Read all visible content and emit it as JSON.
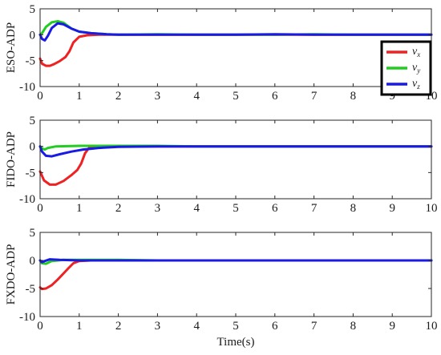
{
  "chart_data": [
    {
      "type": "line",
      "ylabel": "ESO-ADP",
      "xlabel": "",
      "xlim": [
        0,
        10
      ],
      "ylim": [
        -10,
        5
      ],
      "xticks": [
        "0",
        "1",
        "2",
        "3",
        "4",
        "5",
        "6",
        "7",
        "8",
        "9",
        "10"
      ],
      "yticks": [
        "5",
        "0",
        "-5",
        "-10"
      ],
      "grid": false,
      "legend": {
        "placement": "right",
        "entries": [
          {
            "base": "v",
            "sub": "x"
          },
          {
            "base": "v",
            "sub": "y"
          },
          {
            "base": "v",
            "sub": "z"
          }
        ]
      },
      "series": [
        {
          "color": "#ee2222",
          "points": [
            [
              0,
              -4.6
            ],
            [
              0.05,
              -5.6
            ],
            [
              0.15,
              -6.0
            ],
            [
              0.25,
              -6.0
            ],
            [
              0.35,
              -5.7
            ],
            [
              0.5,
              -5.1
            ],
            [
              0.65,
              -4.3
            ],
            [
              0.75,
              -3.2
            ],
            [
              0.85,
              -1.5
            ],
            [
              1.0,
              -0.4
            ],
            [
              1.2,
              -0.1
            ],
            [
              1.5,
              0.0
            ],
            [
              2,
              0.0
            ],
            [
              3,
              0.0
            ],
            [
              4,
              0.0
            ],
            [
              5,
              0.0
            ],
            [
              6,
              0.0
            ],
            [
              7,
              0.0
            ],
            [
              8,
              0.0
            ],
            [
              9,
              0.0
            ],
            [
              10,
              0.0
            ]
          ]
        },
        {
          "color": "#22cc22",
          "points": [
            [
              0,
              0.0
            ],
            [
              0.05,
              0.3
            ],
            [
              0.15,
              1.5
            ],
            [
              0.3,
              2.4
            ],
            [
              0.45,
              2.6
            ],
            [
              0.6,
              2.3
            ],
            [
              0.8,
              1.2
            ],
            [
              1.0,
              0.6
            ],
            [
              1.3,
              0.3
            ],
            [
              1.7,
              0.1
            ],
            [
              2,
              0.0
            ],
            [
              3,
              0.1
            ],
            [
              4,
              0.0
            ],
            [
              5,
              0.0
            ],
            [
              6,
              0.0
            ],
            [
              7,
              0.1
            ],
            [
              8,
              0.0
            ],
            [
              9,
              0.0
            ],
            [
              10,
              0.0
            ]
          ]
        },
        {
          "color": "#1a1ae6",
          "points": [
            [
              0,
              0.0
            ],
            [
              0.05,
              -0.8
            ],
            [
              0.12,
              -1.1
            ],
            [
              0.2,
              -0.2
            ],
            [
              0.3,
              1.3
            ],
            [
              0.45,
              2.2
            ],
            [
              0.6,
              2.0
            ],
            [
              0.8,
              1.2
            ],
            [
              1.0,
              0.6
            ],
            [
              1.3,
              0.3
            ],
            [
              1.7,
              0.1
            ],
            [
              2,
              0.0
            ],
            [
              3,
              0.0
            ],
            [
              4,
              0.0
            ],
            [
              5,
              0.0
            ],
            [
              6,
              0.1
            ],
            [
              7,
              0.0
            ],
            [
              8,
              0.0
            ],
            [
              9,
              0.0
            ],
            [
              10,
              0.0
            ]
          ]
        }
      ]
    },
    {
      "type": "line",
      "ylabel": "FIDO-ADP",
      "xlabel": "",
      "xlim": [
        0,
        10
      ],
      "ylim": [
        -10,
        5
      ],
      "xticks": [
        "0",
        "1",
        "2",
        "3",
        "4",
        "5",
        "6",
        "7",
        "8",
        "9",
        "10"
      ],
      "yticks": [
        "5",
        "0",
        "-5",
        "-10"
      ],
      "grid": false,
      "series": [
        {
          "color": "#ee2222",
          "points": [
            [
              0,
              -4.8
            ],
            [
              0.1,
              -6.5
            ],
            [
              0.25,
              -7.3
            ],
            [
              0.4,
              -7.3
            ],
            [
              0.6,
              -6.6
            ],
            [
              0.8,
              -5.5
            ],
            [
              0.95,
              -4.5
            ],
            [
              1.05,
              -3.3
            ],
            [
              1.15,
              -1.3
            ],
            [
              1.25,
              -0.3
            ],
            [
              1.4,
              0.0
            ],
            [
              2,
              0.0
            ],
            [
              3,
              0.0
            ],
            [
              4,
              0.0
            ],
            [
              5,
              0.0
            ],
            [
              6,
              0.0
            ],
            [
              7,
              0.0
            ],
            [
              8,
              0.0
            ],
            [
              9,
              0.0
            ],
            [
              10,
              0.0
            ]
          ]
        },
        {
          "color": "#22cc22",
          "points": [
            [
              0,
              0.0
            ],
            [
              0.05,
              -0.4
            ],
            [
              0.12,
              -0.6
            ],
            [
              0.2,
              -0.3
            ],
            [
              0.4,
              0.0
            ],
            [
              1.0,
              0.1
            ],
            [
              2,
              0.1
            ],
            [
              3,
              0.1
            ],
            [
              4,
              0.0
            ],
            [
              5,
              0.0
            ],
            [
              6,
              0.0
            ],
            [
              7,
              0.0
            ],
            [
              8,
              0.0
            ],
            [
              9,
              0.0
            ],
            [
              10,
              0.0
            ]
          ]
        },
        {
          "color": "#1a1ae6",
          "points": [
            [
              0,
              0.0
            ],
            [
              0.05,
              -1.0
            ],
            [
              0.15,
              -1.8
            ],
            [
              0.3,
              -1.9
            ],
            [
              0.5,
              -1.5
            ],
            [
              0.8,
              -1.0
            ],
            [
              1.1,
              -0.6
            ],
            [
              1.5,
              -0.3
            ],
            [
              2.0,
              -0.1
            ],
            [
              3,
              0.0
            ],
            [
              4,
              0.0
            ],
            [
              5,
              0.0
            ],
            [
              6,
              0.0
            ],
            [
              7,
              0.0
            ],
            [
              8,
              0.0
            ],
            [
              9,
              0.0
            ],
            [
              10,
              0.0
            ]
          ]
        }
      ]
    },
    {
      "type": "line",
      "ylabel": "FXDO-ADP",
      "xlabel": "Time(s)",
      "xlim": [
        0,
        10
      ],
      "ylim": [
        -10,
        5
      ],
      "xticks": [
        "0",
        "1",
        "2",
        "3",
        "4",
        "5",
        "6",
        "7",
        "8",
        "9",
        "10"
      ],
      "yticks": [
        "5",
        "0",
        "-5",
        "-10"
      ],
      "grid": false,
      "series": [
        {
          "color": "#ee2222",
          "points": [
            [
              0,
              -4.8
            ],
            [
              0.05,
              -5.1
            ],
            [
              0.15,
              -5.0
            ],
            [
              0.3,
              -4.4
            ],
            [
              0.45,
              -3.4
            ],
            [
              0.6,
              -2.3
            ],
            [
              0.75,
              -1.2
            ],
            [
              0.85,
              -0.5
            ],
            [
              1.0,
              -0.1
            ],
            [
              1.3,
              0.0
            ],
            [
              2,
              0.0
            ],
            [
              3,
              0.0
            ],
            [
              4,
              0.0
            ],
            [
              5,
              0.0
            ],
            [
              6,
              0.0
            ],
            [
              7,
              0.0
            ],
            [
              8,
              0.0
            ],
            [
              9,
              0.0
            ],
            [
              10,
              0.0
            ]
          ]
        },
        {
          "color": "#22cc22",
          "points": [
            [
              0,
              0.0
            ],
            [
              0.05,
              -0.5
            ],
            [
              0.15,
              -0.6
            ],
            [
              0.3,
              -0.1
            ],
            [
              0.6,
              0.1
            ],
            [
              1.0,
              0.1
            ],
            [
              2,
              0.1
            ],
            [
              3,
              0.0
            ],
            [
              4,
              0.0
            ],
            [
              5,
              0.0
            ],
            [
              6,
              0.0
            ],
            [
              7,
              0.0
            ],
            [
              8,
              0.0
            ],
            [
              9,
              0.0
            ],
            [
              10,
              0.0
            ]
          ]
        },
        {
          "color": "#1a1ae6",
          "points": [
            [
              0,
              0.0
            ],
            [
              0.05,
              -0.3
            ],
            [
              0.12,
              -0.1
            ],
            [
              0.25,
              0.2
            ],
            [
              0.5,
              0.1
            ],
            [
              1.0,
              0.0
            ],
            [
              2,
              0.0
            ],
            [
              3,
              0.0
            ],
            [
              4,
              0.0
            ],
            [
              5,
              0.0
            ],
            [
              6,
              0.0
            ],
            [
              7,
              0.0
            ],
            [
              8,
              0.0
            ],
            [
              9,
              0.0
            ],
            [
              10,
              0.0
            ]
          ]
        }
      ]
    }
  ]
}
